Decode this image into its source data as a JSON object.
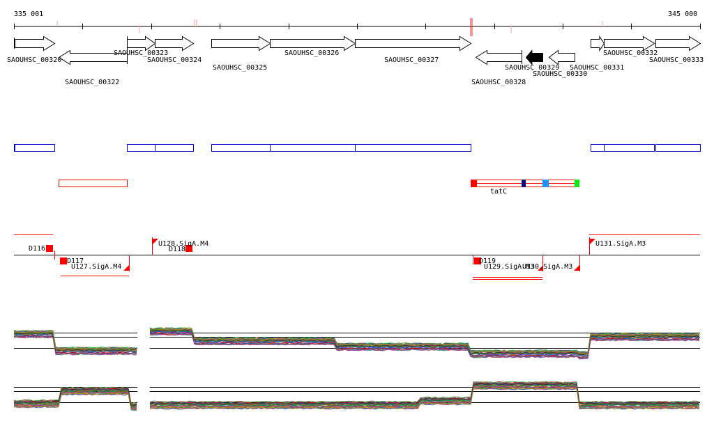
{
  "ruler": {
    "start_label": "335 001",
    "end_label": "345 000"
  },
  "genes": [
    {
      "name": "SAOUHSC_00320"
    },
    {
      "name": "SAOUHSC_00322"
    },
    {
      "name": "SAOUHSC_00323"
    },
    {
      "name": "SAOUHSC_00324"
    },
    {
      "name": "SAOUHSC_00325"
    },
    {
      "name": "SAOUHSC_00326"
    },
    {
      "name": "SAOUHSC_00327"
    },
    {
      "name": "SAOUHSC_00328"
    },
    {
      "name": "SAOUHSC_00329"
    },
    {
      "name": "SAOUHSC_00330"
    },
    {
      "name": "SAOUHSC_00331"
    },
    {
      "name": "SAOUHSC_00332"
    },
    {
      "name": "SAOUHSC_00333"
    }
  ],
  "feature_labels": {
    "tatc": "tatC"
  },
  "regions": {
    "d116": "D116",
    "d117": "D117",
    "d118": "D118",
    "d119": "D119",
    "u127": "U127.SigA.M4",
    "u128": "U128.SigA.M4",
    "u129": "U129.SigA.M3",
    "u130": "U130.SigA.M3",
    "u131": "U131.SigA.M3"
  },
  "colors": {
    "gene_outline": "#000000",
    "operon_blue": "#0000cc",
    "feature_red": "#ff0000",
    "feature_dark_blue": "#000080",
    "feature_light_blue": "#1e90ff",
    "feature_green": "#00ee00"
  }
}
